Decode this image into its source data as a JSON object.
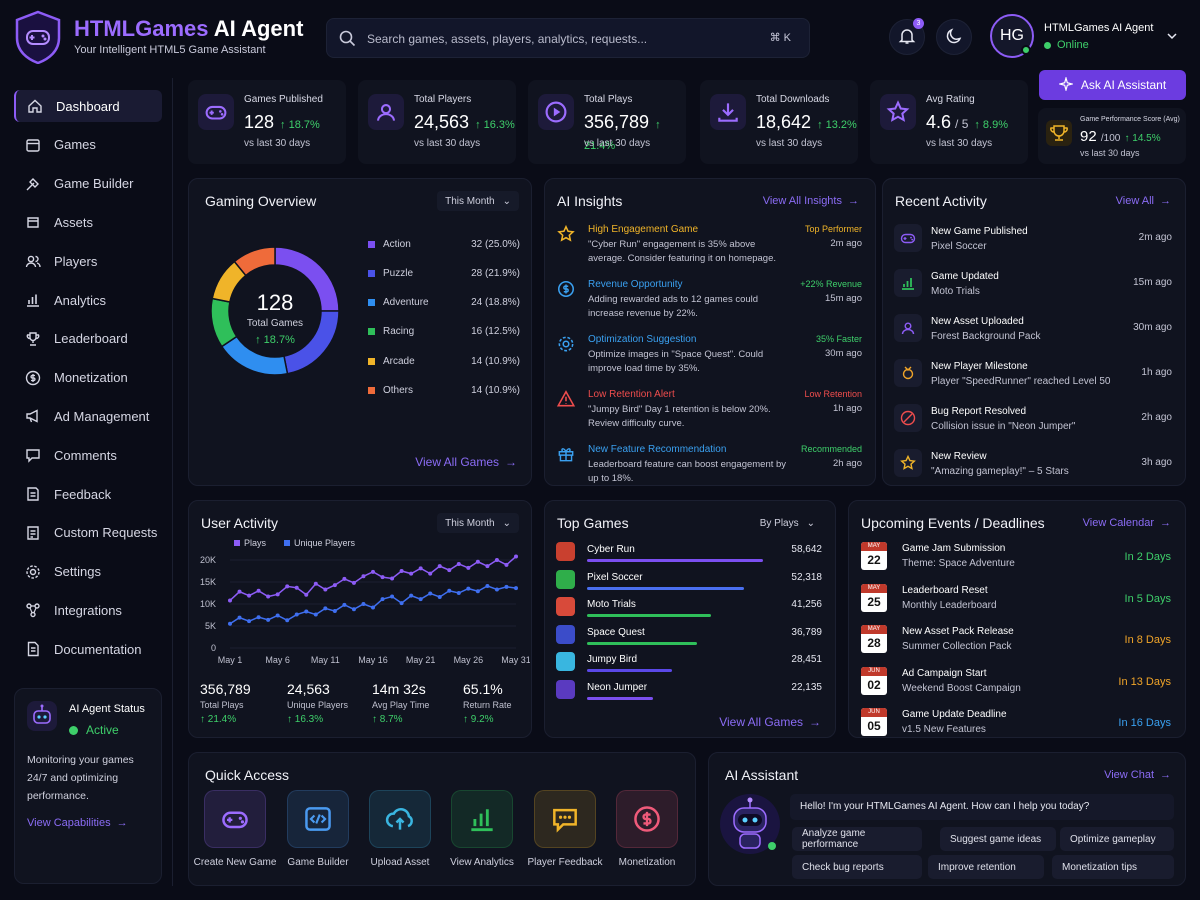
{
  "app": {
    "title_part1": "HTMLGames",
    "title_part2": " AI Agent",
    "subtitle": "Your Intelligent HTML5 Game Assistant"
  },
  "search": {
    "placeholder": "Search games, assets, players, analytics, requests...",
    "shortcut": "⌘ K"
  },
  "user": {
    "initials": "HG",
    "name": "HTMLGames AI Agent",
    "status": "Online",
    "notification_count": "3"
  },
  "ask_button": "Ask AI Assistant",
  "sidebar": {
    "items": [
      {
        "label": "Dashboard",
        "icon": "home-icon"
      },
      {
        "label": "Games",
        "icon": "games-icon"
      },
      {
        "label": "Game Builder",
        "icon": "builder-icon"
      },
      {
        "label": "Assets",
        "icon": "assets-icon"
      },
      {
        "label": "Players",
        "icon": "players-icon"
      },
      {
        "label": "Analytics",
        "icon": "analytics-icon"
      },
      {
        "label": "Leaderboard",
        "icon": "trophy-icon"
      },
      {
        "label": "Monetization",
        "icon": "dollar-icon"
      },
      {
        "label": "Ad Management",
        "icon": "megaphone-icon"
      },
      {
        "label": "Comments",
        "icon": "comment-icon"
      },
      {
        "label": "Feedback",
        "icon": "feedback-icon"
      },
      {
        "label": "Custom Requests",
        "icon": "request-icon"
      },
      {
        "label": "Settings",
        "icon": "gear-icon"
      },
      {
        "label": "Integrations",
        "icon": "integrations-icon"
      },
      {
        "label": "Documentation",
        "icon": "doc-icon"
      }
    ],
    "agent_status": {
      "title": "AI Agent Status",
      "state": "Active",
      "description": "Monitoring your games 24/7 and optimizing performance.",
      "link": "View Capabilities"
    }
  },
  "stats": [
    {
      "label": "Games Published",
      "value": "128",
      "change": "↑ 18.7%",
      "sub": "vs last 30 days"
    },
    {
      "label": "Total Players",
      "value": "24,563",
      "change": "↑ 16.3%",
      "sub": "vs last 30 days"
    },
    {
      "label": "Total Plays",
      "value": "356,789",
      "change": "↑ 21.4%",
      "sub": "vs last 30 days"
    },
    {
      "label": "Total Downloads",
      "value": "18,642",
      "change": "↑ 13.2%",
      "sub": "vs last 30 days"
    },
    {
      "label": "Avg Rating",
      "value": "4.6",
      "value_suffix": "/ 5",
      "change": "↑ 8.9%",
      "sub": "vs last 30 days"
    }
  ],
  "performance_score": {
    "label": "Game Performance Score (Avg)",
    "value": "92",
    "suffix": "/100",
    "change": "↑ 14.5%",
    "sub": "vs last 30 days"
  },
  "overview": {
    "title": "Gaming Overview",
    "period": "This Month",
    "center_value": "128",
    "center_label": "Total Games",
    "center_change": "↑ 18.7%",
    "link": "View All Games",
    "segments": [
      {
        "name": "Action",
        "value": 32,
        "pct": "32 (25.0%)",
        "color": "#7b4ff0"
      },
      {
        "name": "Puzzle",
        "value": 28,
        "pct": "28 (21.9%)",
        "color": "#4a52e8"
      },
      {
        "name": "Adventure",
        "value": 24,
        "pct": "24 (18.8%)",
        "color": "#2f8ef0"
      },
      {
        "name": "Racing",
        "value": 16,
        "pct": "16 (12.5%)",
        "color": "#2fbf5a"
      },
      {
        "name": "Arcade",
        "value": 14,
        "pct": "14 (10.9%)",
        "color": "#f0b429"
      },
      {
        "name": "Others",
        "value": 14,
        "pct": "14 (10.9%)",
        "color": "#ef6b3a"
      }
    ]
  },
  "insights": {
    "title": "AI Insights",
    "link": "View All Insights",
    "items": [
      {
        "title": "High Engagement Game",
        "desc": "\"Cyber Run\" engagement is 35% above average. Consider featuring it on homepage.",
        "tag": "Top Performer",
        "time": "2m ago",
        "color": "#f0b429",
        "icon": "star-icon"
      },
      {
        "title": "Revenue Opportunity",
        "desc": "Adding rewarded ads to 12 games could increase revenue by 22%.",
        "tag": "+22% Revenue",
        "time": "15m ago",
        "color": "#3aa0f0",
        "tag_color": "#3ecf6a",
        "icon": "dollar-icon"
      },
      {
        "title": "Optimization Suggestion",
        "desc": "Optimize images in \"Space Quest\". Could improve load time by 35%.",
        "tag": "35% Faster",
        "time": "30m ago",
        "color": "#3aa0f0",
        "tag_color": "#3ecf6a",
        "icon": "gear-icon"
      },
      {
        "title": "Low Retention Alert",
        "desc": "\"Jumpy Bird\" Day 1 retention is below 20%. Review difficulty curve.",
        "tag": "Low Retention",
        "time": "1h ago",
        "color": "#ef4d4d",
        "icon": "warning-icon"
      },
      {
        "title": "New Feature Recommendation",
        "desc": "Leaderboard feature can boost engagement by up to 18%.",
        "tag": "Recommended",
        "time": "2h ago",
        "color": "#3aa0f0",
        "tag_color": "#3ecf6a",
        "icon": "gift-icon"
      }
    ]
  },
  "recent": {
    "title": "Recent Activity",
    "link": "View All",
    "items": [
      {
        "title": "New Game Published",
        "desc": "Pixel Soccer",
        "time": "2m ago",
        "icon": "gamepad-icon",
        "color": "#8d5cf6"
      },
      {
        "title": "Game Updated",
        "desc": "Moto Trials",
        "time": "15m ago",
        "icon": "chart-icon",
        "color": "#2fbf5a"
      },
      {
        "title": "New Asset Uploaded",
        "desc": "Forest Background Pack",
        "time": "30m ago",
        "icon": "users-icon",
        "color": "#8d5cf6"
      },
      {
        "title": "New Player Milestone",
        "desc": "Player \"SpeedRunner\" reached Level 50",
        "time": "1h ago",
        "icon": "medal-icon",
        "color": "#f0a429"
      },
      {
        "title": "Bug Report Resolved",
        "desc": "Collision issue in \"Neon Jumper\"",
        "time": "2h ago",
        "icon": "bug-icon",
        "color": "#ef4d4d"
      },
      {
        "title": "New Review",
        "desc": "\"Amazing gameplay!\" – 5 Stars",
        "time": "3h ago",
        "icon": "star-icon",
        "color": "#f0b429"
      }
    ]
  },
  "user_activity": {
    "title": "User Activity",
    "period": "This Month",
    "stats": [
      {
        "value": "356,789",
        "label": "Total Plays",
        "change": "↑ 21.4%"
      },
      {
        "value": "24,563",
        "label": "Unique Players",
        "change": "↑ 16.3%"
      },
      {
        "value": "14m 32s",
        "label": "Avg Play Time",
        "change": "↑ 8.7%"
      },
      {
        "value": "65.1%",
        "label": "Return Rate",
        "change": "↑ 9.2%"
      }
    ]
  },
  "chart_data": {
    "type": "line",
    "title": "User Activity",
    "x": [
      "May 1",
      "May 2",
      "May 3",
      "May 4",
      "May 5",
      "May 6",
      "May 7",
      "May 8",
      "May 9",
      "May 10",
      "May 11",
      "May 12",
      "May 13",
      "May 14",
      "May 15",
      "May 16",
      "May 17",
      "May 18",
      "May 19",
      "May 20",
      "May 21",
      "May 22",
      "May 23",
      "May 24",
      "May 25",
      "May 26",
      "May 27",
      "May 28",
      "May 29",
      "May 30",
      "May 31"
    ],
    "x_ticks": [
      "May 1",
      "May 6",
      "May 11",
      "May 16",
      "May 21",
      "May 26",
      "May 31"
    ],
    "y_ticks": [
      "0",
      "5K",
      "10K",
      "15K",
      "20K"
    ],
    "ylim": [
      0,
      20000
    ],
    "series": [
      {
        "name": "Plays",
        "color": "#8d5cf6",
        "values": [
          10800,
          12800,
          11900,
          13000,
          11700,
          12200,
          14000,
          13700,
          12100,
          14600,
          13300,
          14300,
          15700,
          14800,
          16300,
          17300,
          16100,
          15800,
          17500,
          16900,
          18100,
          16900,
          18600,
          17700,
          19100,
          18200,
          19600,
          18600,
          20000,
          18900,
          20800
        ]
      },
      {
        "name": "Unique Players",
        "color": "#3f6ff0",
        "values": [
          5500,
          6900,
          6100,
          7000,
          6400,
          7400,
          6300,
          7600,
          8300,
          7600,
          9000,
          8400,
          9800,
          8800,
          10000,
          9200,
          11100,
          11700,
          10200,
          11900,
          11100,
          12400,
          11600,
          13000,
          12500,
          13500,
          12900,
          14100,
          13300,
          13900,
          13600
        ]
      }
    ]
  },
  "top_games": {
    "title": "Top Games",
    "sort": "By Plays",
    "link": "View All Games",
    "items": [
      {
        "name": "Cyber Run",
        "value": "58,642",
        "plays": 58642,
        "color": "#7b4ff0",
        "thumb": "#c9402f"
      },
      {
        "name": "Pixel Soccer",
        "value": "52,318",
        "plays": 52318,
        "color": "#4a6ff0",
        "thumb": "#2fae4a"
      },
      {
        "name": "Moto Trials",
        "value": "41,256",
        "plays": 41256,
        "color": "#2fbf5a",
        "thumb": "#d84a3a"
      },
      {
        "name": "Space Quest",
        "value": "36,789",
        "plays": 36789,
        "color": "#2fbf5a",
        "thumb": "#3b4cc9"
      },
      {
        "name": "Jumpy Bird",
        "value": "28,451",
        "plays": 28451,
        "color": "#5a48e8",
        "thumb": "#39b6e0"
      },
      {
        "name": "Neon Jumper",
        "value": "22,135",
        "plays": 22135,
        "color": "#7b4ff0",
        "thumb": "#5a3ac0"
      }
    ]
  },
  "events": {
    "title": "Upcoming Events / Deadlines",
    "link": "View Calendar",
    "items": [
      {
        "month": "MAY",
        "day": "22",
        "title": "Game Jam Submission",
        "desc": "Theme: Space Adventure",
        "due": "In 2 Days",
        "color": "#3ecf6a"
      },
      {
        "month": "MAY",
        "day": "25",
        "title": "Leaderboard Reset",
        "desc": "Monthly Leaderboard",
        "due": "In 5 Days",
        "color": "#3ecf6a"
      },
      {
        "month": "MAY",
        "day": "28",
        "title": "New Asset Pack Release",
        "desc": "Summer Collection Pack",
        "due": "In 8 Days",
        "color": "#f0a429"
      },
      {
        "month": "JUN",
        "day": "02",
        "title": "Ad Campaign Start",
        "desc": "Weekend Boost Campaign",
        "due": "In 13 Days",
        "color": "#f0a429"
      },
      {
        "month": "JUN",
        "day": "05",
        "title": "Game Update Deadline",
        "desc": "v1.5 New Features",
        "due": "In 16 Days",
        "color": "#3aa0f0"
      }
    ]
  },
  "quick_access": {
    "title": "Quick Access",
    "items": [
      {
        "label": "Create New Game",
        "icon": "gamepad-icon",
        "color": "#9c6cff"
      },
      {
        "label": "Game Builder",
        "icon": "code-icon",
        "color": "#4a9af0"
      },
      {
        "label": "Upload Asset",
        "icon": "cloud-upload-icon",
        "color": "#3ab5e0"
      },
      {
        "label": "View Analytics",
        "icon": "analytics-icon",
        "color": "#2fbf5a"
      },
      {
        "label": "Player Feedback",
        "icon": "chat-icon",
        "color": "#f0b429"
      },
      {
        "label": "Monetization",
        "icon": "dollar-icon",
        "color": "#ef5a7a"
      }
    ]
  },
  "assistant": {
    "title": "AI Assistant",
    "link": "View Chat",
    "greeting": "Hello! I'm your HTMLGames AI Agent. How can I help you today?",
    "chips": [
      "Analyze game performance",
      "Suggest game ideas",
      "Optimize gameplay",
      "Check bug reports",
      "Improve retention",
      "Monetization tips"
    ]
  }
}
